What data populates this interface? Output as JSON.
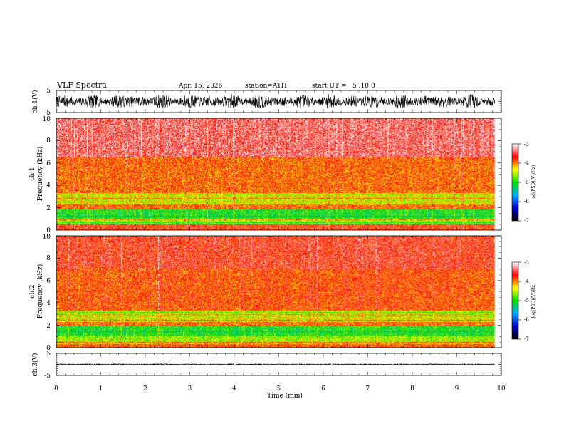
{
  "header": {
    "title": "VLF Spectra",
    "date": "Apr. 15, 2026",
    "station": "station=ATH",
    "start": "start UT =   5 :10:0"
  },
  "chart_data": [
    {
      "type": "line",
      "id": "ch1-waveform",
      "ylabel": "ch.1(V)",
      "ylim": [
        -5,
        5
      ],
      "ytick_labels": [
        "5",
        "-5"
      ],
      "amplitude_typical": 3.2,
      "line_color": "#000000"
    },
    {
      "type": "heatmap",
      "id": "ch1-spectrogram",
      "ylabel_lines": [
        "ch.1",
        "Frequency (kHz)"
      ],
      "ylim": [
        0,
        10
      ],
      "ytick_labels": [
        "0",
        "2",
        "4",
        "6",
        "8",
        "10"
      ],
      "bands_khz": [
        {
          "from": 0.0,
          "to": 0.5,
          "level": -3.7
        },
        {
          "from": 0.5,
          "to": 1.0,
          "level": -4.6
        },
        {
          "from": 1.0,
          "to": 1.8,
          "level": -5.0
        },
        {
          "from": 1.8,
          "to": 2.2,
          "level": -3.9
        },
        {
          "from": 2.2,
          "to": 3.3,
          "level": -4.4
        },
        {
          "from": 3.3,
          "to": 6.5,
          "level": -3.9
        },
        {
          "from": 6.5,
          "to": 10.0,
          "level": -3.4
        }
      ],
      "colorbar": {
        "label": "log(PSD)(V²/Hz)",
        "range": [
          -7,
          -3
        ],
        "tick_labels": [
          "-3",
          "-4",
          "-5",
          "-6",
          "-7"
        ],
        "colors": [
          "#000000",
          "#0000cc",
          "#00aaff",
          "#00dd00",
          "#ffff00",
          "#ff0000",
          "#ffffff"
        ]
      }
    },
    {
      "type": "heatmap",
      "id": "ch2-spectrogram",
      "ylabel_lines": [
        "ch.2",
        "Frequency (kHz)"
      ],
      "ylim": [
        0,
        10
      ],
      "ytick_labels": [
        "0",
        "2",
        "4",
        "6",
        "8",
        "10"
      ],
      "bands_khz": [
        {
          "from": 0.0,
          "to": 0.5,
          "level": -3.8
        },
        {
          "from": 0.5,
          "to": 1.0,
          "level": -4.6
        },
        {
          "from": 1.0,
          "to": 1.9,
          "level": -5.0
        },
        {
          "from": 1.9,
          "to": 2.3,
          "level": -3.9
        },
        {
          "from": 2.3,
          "to": 3.3,
          "level": -4.4
        },
        {
          "from": 3.3,
          "to": 7.0,
          "level": -3.8
        },
        {
          "from": 7.0,
          "to": 10.0,
          "level": -3.6
        }
      ],
      "colorbar": {
        "label": "log(PSD)(V²/Hz)",
        "range": [
          -7,
          -3
        ],
        "tick_labels": [
          "-3",
          "-4",
          "-5",
          "-6",
          "-7"
        ],
        "colors": [
          "#000000",
          "#0000cc",
          "#00aaff",
          "#00dd00",
          "#ffff00",
          "#ff0000",
          "#ffffff"
        ]
      }
    },
    {
      "type": "line",
      "id": "ch3-waveform",
      "ylabel": "ch.3(V)",
      "ylim": [
        -5,
        5
      ],
      "ytick_labels": [
        "5",
        "-5"
      ],
      "amplitude_typical": 0.3,
      "line_color": "#000000"
    }
  ],
  "xaxis": {
    "label": "Time (min)",
    "xlim": [
      0,
      10
    ],
    "data_end": 9.85,
    "tick_labels": [
      "0",
      "1",
      "2",
      "3",
      "4",
      "5",
      "6",
      "7",
      "8",
      "9",
      "10"
    ]
  }
}
